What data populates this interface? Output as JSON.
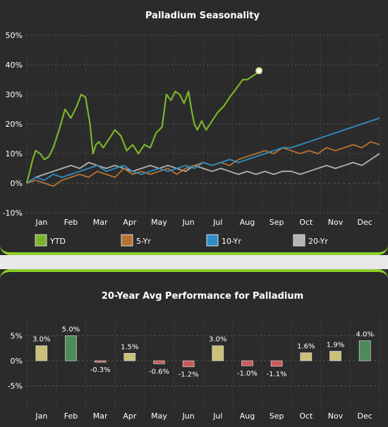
{
  "chart_data": [
    {
      "type": "line",
      "title": "Palladium Seasonality",
      "xlabel": "",
      "ylabel": "",
      "ylim": [
        -10,
        50
      ],
      "yticks": [
        "-10%",
        "0%",
        "10%",
        "20%",
        "30%",
        "40%",
        "50%"
      ],
      "categories": [
        "Jan",
        "Feb",
        "Mar",
        "Apr",
        "May",
        "Jun",
        "Jul",
        "Aug",
        "Sep",
        "Oct",
        "Nov",
        "Dec"
      ],
      "grid": true,
      "legend": "bottom",
      "series": [
        {
          "name": "YTD",
          "color": "#7cb32a",
          "x": [
            0,
            0.1,
            0.2,
            0.3,
            0.45,
            0.6,
            0.75,
            0.9,
            1.1,
            1.3,
            1.5,
            1.7,
            1.85,
            2.0,
            2.15,
            2.25,
            2.35,
            2.45,
            2.6,
            2.8,
            3.0,
            3.2,
            3.4,
            3.6,
            3.8,
            4.0,
            4.2,
            4.4,
            4.6,
            4.75,
            4.9,
            5.05,
            5.2,
            5.35,
            5.5,
            5.6,
            5.7,
            5.8,
            5.95,
            6.1,
            6.3,
            6.5,
            6.7,
            6.9,
            7.05,
            7.2,
            7.35,
            7.5,
            7.65,
            7.8,
            7.9
          ],
          "y": [
            0,
            4,
            8,
            11,
            10,
            8,
            9,
            12,
            18,
            25,
            22,
            26,
            30,
            29,
            20,
            10,
            13,
            14,
            12,
            15,
            18,
            16,
            11,
            13,
            10,
            13,
            12,
            17,
            19,
            30,
            28,
            31,
            30,
            27,
            31,
            25,
            20,
            18,
            21,
            18,
            21,
            24,
            26,
            29,
            31,
            33,
            35,
            35,
            36,
            37,
            38
          ]
        },
        {
          "name": "5-Yr",
          "color": "#b87333",
          "x": [
            0,
            0.3,
            0.6,
            0.9,
            1.2,
            1.5,
            1.8,
            2.1,
            2.4,
            2.7,
            3.0,
            3.3,
            3.6,
            3.9,
            4.2,
            4.5,
            4.8,
            5.1,
            5.4,
            5.7,
            6.0,
            6.3,
            6.6,
            6.9,
            7.2,
            7.5,
            7.8,
            8.1,
            8.4,
            8.7,
            9.0,
            9.3,
            9.6,
            9.9,
            10.2,
            10.5,
            10.8,
            11.1,
            11.4,
            11.7,
            12.0
          ],
          "y": [
            0,
            1,
            0,
            -1,
            1,
            2,
            3,
            2,
            4,
            3,
            2,
            5,
            3,
            4,
            3,
            4,
            5,
            3,
            5,
            6,
            7,
            6,
            7,
            6,
            8,
            9,
            10,
            11,
            10,
            12,
            11,
            10,
            11,
            10,
            12,
            11,
            12,
            13,
            12,
            14,
            13
          ]
        },
        {
          "name": "10-Yr",
          "color": "#2e8fc8",
          "x": [
            0,
            0.3,
            0.6,
            0.9,
            1.2,
            1.5,
            1.8,
            2.1,
            2.4,
            2.7,
            3.0,
            3.3,
            3.6,
            3.9,
            4.2,
            4.5,
            4.8,
            5.1,
            5.4,
            5.7,
            6.0,
            6.3,
            6.6,
            6.9,
            7.2,
            7.5,
            7.8,
            8.1,
            8.4,
            8.7,
            9.0,
            9.3,
            9.6,
            9.9,
            10.2,
            10.5,
            10.8,
            11.1,
            11.4,
            11.7,
            12.0
          ],
          "y": [
            0,
            2,
            1,
            3,
            2,
            3,
            4,
            5,
            6,
            4,
            5,
            6,
            4,
            3,
            4,
            5,
            4,
            5,
            6,
            5,
            7,
            6,
            7,
            8,
            7,
            8,
            9,
            10,
            11,
            12,
            12,
            13,
            14,
            15,
            16,
            17,
            18,
            19,
            20,
            21,
            22
          ]
        },
        {
          "name": "20-Yr",
          "color": "#b3b3b3",
          "x": [
            0,
            0.3,
            0.6,
            0.9,
            1.2,
            1.5,
            1.8,
            2.1,
            2.4,
            2.7,
            3.0,
            3.3,
            3.6,
            3.9,
            4.2,
            4.5,
            4.8,
            5.1,
            5.4,
            5.7,
            6.0,
            6.3,
            6.6,
            6.9,
            7.2,
            7.5,
            7.8,
            8.1,
            8.4,
            8.7,
            9.0,
            9.3,
            9.6,
            9.9,
            10.2,
            10.5,
            10.8,
            11.1,
            11.4,
            11.7,
            12.0
          ],
          "y": [
            0,
            2,
            3,
            4,
            5,
            6,
            5,
            7,
            6,
            5,
            6,
            5,
            4,
            5,
            6,
            5,
            6,
            5,
            4,
            6,
            5,
            4,
            5,
            4,
            3,
            4,
            3,
            4,
            3,
            4,
            4,
            3,
            4,
            5,
            6,
            5,
            6,
            7,
            6,
            8,
            10
          ]
        }
      ],
      "endpoint": {
        "x": 7.9,
        "y": 38,
        "color": "#c8e08a"
      }
    },
    {
      "type": "bar",
      "title": "20-Year Avg Performance for Palladium",
      "xlabel": "",
      "ylabel": "",
      "ylim": [
        -9,
        9
      ],
      "yticks": [
        "-5%",
        "0%",
        "5%"
      ],
      "grid": true,
      "categories": [
        "Jan",
        "Feb",
        "Mar",
        "Apr",
        "May",
        "Jun",
        "Jul",
        "Aug",
        "Sep",
        "Oct",
        "Nov",
        "Dec"
      ],
      "values": [
        3.0,
        5.0,
        -0.3,
        1.5,
        -0.6,
        -1.2,
        3.0,
        -1.0,
        -1.1,
        1.6,
        1.9,
        4.0
      ],
      "labels": [
        "3.0%",
        "5.0%",
        "-0.3%",
        "1.5%",
        "-0.6%",
        "-1.2%",
        "3.0%",
        "-1.0%",
        "-1.1%",
        "1.6%",
        "1.9%",
        "4.0%"
      ],
      "colors": [
        "#c9c07a",
        "#4f8a5a",
        "#c85a5a",
        "#c9c07a",
        "#c85a5a",
        "#c85a5a",
        "#c9c07a",
        "#c85a5a",
        "#c85a5a",
        "#c9c07a",
        "#c9c07a",
        "#4f8a5a"
      ]
    }
  ]
}
